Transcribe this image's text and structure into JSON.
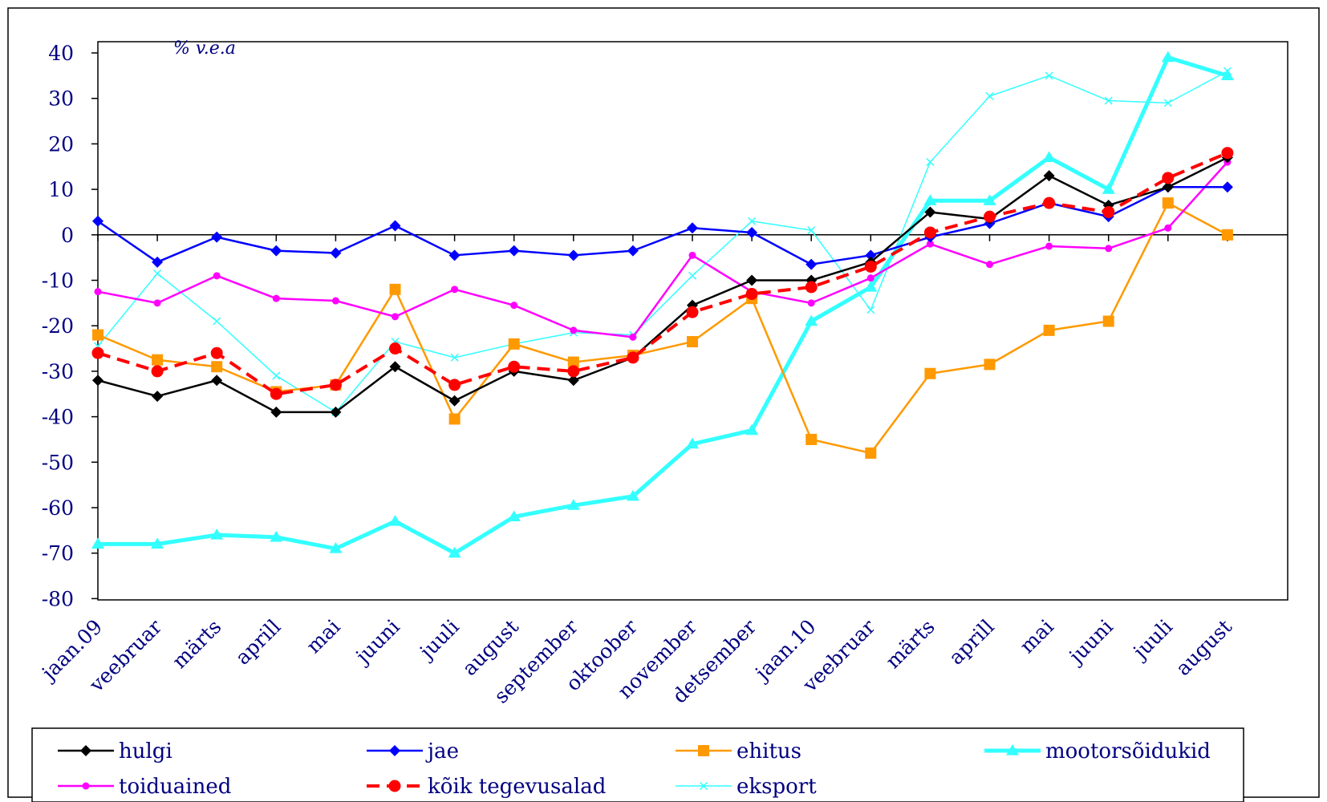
{
  "chart_data": {
    "type": "line",
    "unit_label": "% v.e.a",
    "categories": [
      "jaan.09",
      "veebruar",
      "märts",
      "aprill",
      "mai",
      "juuni",
      "juuli",
      "august",
      "september",
      "oktoober",
      "november",
      "detsember",
      "jaan.10",
      "veebruar",
      "märts",
      "aprill",
      "mai",
      "juuni",
      "juuli",
      "august"
    ],
    "ylim": [
      -80,
      40
    ],
    "yticks": [
      40,
      30,
      20,
      10,
      0,
      -10,
      -20,
      -30,
      -40,
      -50,
      -60,
      -70,
      -80
    ],
    "grid": false,
    "legend_position": "bottom",
    "series": [
      {
        "name": "hulgi",
        "color": "#000000",
        "marker": "diamond",
        "style": "solid",
        "width": 2.5,
        "values": [
          -32,
          -35.5,
          -32,
          -39,
          -39,
          -29,
          -36.5,
          -30,
          -32,
          -27,
          -15.5,
          -10,
          -10,
          -6,
          5,
          3.5,
          13,
          6.5,
          10.5,
          17
        ]
      },
      {
        "name": "jae",
        "color": "#0000ff",
        "marker": "diamond",
        "style": "solid",
        "width": 2.5,
        "values": [
          3,
          -6,
          -0.5,
          -3.5,
          -4,
          2,
          -4.5,
          -3.5,
          -4.5,
          -3.5,
          1.5,
          0.5,
          -6.5,
          -4.5,
          -0.5,
          2.5,
          7,
          4,
          10.5,
          10.5
        ]
      },
      {
        "name": "ehitus",
        "color": "#ff9900",
        "marker": "square",
        "style": "solid",
        "width": 2.5,
        "values": [
          -22,
          -27.5,
          -29,
          -34.5,
          -33,
          -12,
          -40.5,
          -24,
          -28,
          -26.5,
          -23.5,
          -14,
          -45,
          -48,
          -30.5,
          -28.5,
          -21,
          -19,
          7,
          0
        ]
      },
      {
        "name": "mootorsõidukid",
        "color": "#33ffff",
        "marker": "triangle",
        "style": "solid",
        "width": 5,
        "values": [
          -68,
          -68,
          -66,
          -66.5,
          -69,
          -63,
          -70,
          -62,
          -59.5,
          -57.5,
          -46,
          -43,
          -19,
          -11.5,
          7.5,
          7.5,
          17,
          10,
          39,
          35
        ]
      },
      {
        "name": "toiduained",
        "color": "#ff00ff",
        "marker": "circle-small",
        "style": "solid",
        "width": 2.5,
        "values": [
          -12.5,
          -15,
          -9,
          -14,
          -14.5,
          -18,
          -12,
          -15.5,
          -21,
          -22.5,
          -4.5,
          -12.5,
          -15,
          -9.5,
          -2,
          -6.5,
          -2.5,
          -3,
          1.5,
          16
        ]
      },
      {
        "name": "kõik tegevusalad",
        "color": "#ff0000",
        "marker": "circle",
        "style": "dashed",
        "width": 4,
        "values": [
          -26,
          -30,
          -26,
          -35,
          -33,
          -25,
          -33,
          -29,
          -30,
          -27,
          -17,
          -13,
          -11.5,
          -7,
          0.5,
          4,
          7,
          5,
          12.5,
          18
        ]
      },
      {
        "name": "eksport",
        "color": "#33ffff",
        "marker": "x",
        "style": "solid",
        "width": 1.5,
        "values": [
          -24.5,
          -8.5,
          -19,
          -31,
          -39,
          -23.5,
          -27,
          -24,
          -21.5,
          -22,
          -9,
          3,
          1,
          -16.5,
          16,
          30.5,
          35,
          29.5,
          29,
          36
        ]
      }
    ]
  },
  "legend": {
    "order": [
      "hulgi",
      "jae",
      "ehitus",
      "mootorsõidukid",
      "toiduained",
      "kõik tegevusalad",
      "eksport"
    ]
  }
}
